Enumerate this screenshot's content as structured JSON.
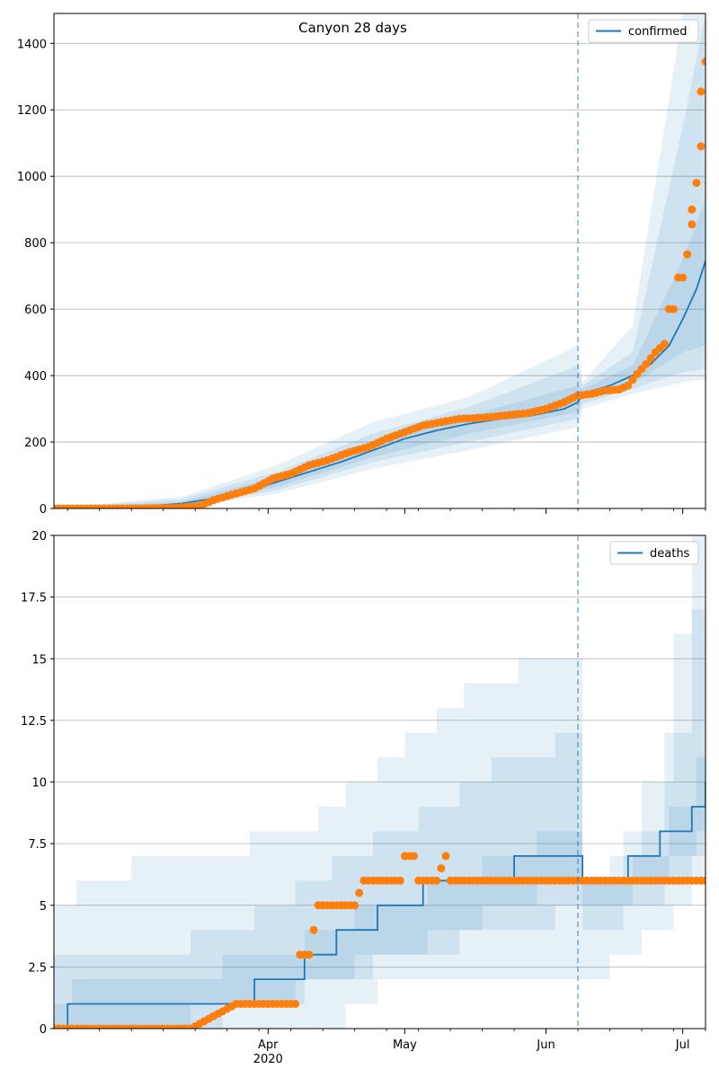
{
  "chart_data": [
    {
      "type": "line",
      "title": "Canyon 28 days",
      "xlabel": "",
      "ylabel": "",
      "x_range": [
        "2020-02-14",
        "2020-07-06"
      ],
      "ylim": [
        0,
        1490
      ],
      "yticks": [
        0,
        200,
        400,
        600,
        800,
        1000,
        1200,
        1400
      ],
      "grid": "horizontal",
      "legend": {
        "position": "top-right",
        "entries": [
          "confirmed"
        ]
      },
      "vertical_marker_date": "2020-06-08",
      "series": [
        {
          "name": "confirmed",
          "kind": "model median",
          "points": [
            [
              "2020-02-14",
              0
            ],
            [
              "2020-02-24",
              1
            ],
            [
              "2020-03-04",
              5
            ],
            [
              "2020-03-13",
              15
            ],
            [
              "2020-03-20",
              30
            ],
            [
              "2020-03-27",
              50
            ],
            [
              "2020-04-03",
              80
            ],
            [
              "2020-04-10",
              110
            ],
            [
              "2020-04-17",
              140
            ],
            [
              "2020-04-24",
              175
            ],
            [
              "2020-05-01",
              210
            ],
            [
              "2020-05-08",
              235
            ],
            [
              "2020-05-15",
              255
            ],
            [
              "2020-05-22",
              270
            ],
            [
              "2020-05-29",
              280
            ],
            [
              "2020-06-05",
              300
            ],
            [
              "2020-06-08",
              320
            ],
            [
              "2020-06-09",
              345
            ],
            [
              "2020-06-15",
              370
            ],
            [
              "2020-06-20",
              400
            ],
            [
              "2020-06-24",
              435
            ],
            [
              "2020-06-28",
              490
            ],
            [
              "2020-07-01",
              570
            ],
            [
              "2020-07-04",
              660
            ],
            [
              "2020-07-06",
              745
            ]
          ]
        },
        {
          "name": "",
          "kind": "observed",
          "points": [
            [
              "2020-02-14",
              0
            ],
            [
              "2020-02-24",
              0
            ],
            [
              "2020-03-04",
              0
            ],
            [
              "2020-03-12",
              2
            ],
            [
              "2020-03-17",
              8
            ],
            [
              "2020-03-20",
              25
            ],
            [
              "2020-03-25",
              45
            ],
            [
              "2020-03-29",
              60
            ],
            [
              "2020-04-02",
              90
            ],
            [
              "2020-04-06",
              105
            ],
            [
              "2020-04-10",
              130
            ],
            [
              "2020-04-14",
              145
            ],
            [
              "2020-04-19",
              170
            ],
            [
              "2020-04-23",
              185
            ],
            [
              "2020-04-27",
              210
            ],
            [
              "2020-05-01",
              230
            ],
            [
              "2020-05-05",
              250
            ],
            [
              "2020-05-09",
              260
            ],
            [
              "2020-05-13",
              270
            ],
            [
              "2020-05-18",
              273
            ],
            [
              "2020-05-23",
              280
            ],
            [
              "2020-05-28",
              287
            ],
            [
              "2020-06-01",
              300
            ],
            [
              "2020-06-05",
              320
            ],
            [
              "2020-06-08",
              340
            ],
            [
              "2020-06-11",
              345
            ],
            [
              "2020-06-14",
              355
            ],
            [
              "2020-06-17",
              358
            ],
            [
              "2020-06-19",
              370
            ],
            [
              "2020-06-21",
              405
            ],
            [
              "2020-06-23",
              435
            ],
            [
              "2020-06-25",
              470
            ],
            [
              "2020-06-27",
              495
            ],
            [
              "2020-06-28",
              600
            ],
            [
              "2020-06-29",
              600
            ],
            [
              "2020-06-30",
              695
            ],
            [
              "2020-07-01",
              695
            ],
            [
              "2020-07-02",
              765
            ],
            [
              "2020-07-03",
              855
            ],
            [
              "2020-07-03",
              900
            ],
            [
              "2020-07-04",
              980
            ],
            [
              "2020-07-05",
              1090
            ],
            [
              "2020-07-05",
              1255
            ],
            [
              "2020-07-06",
              1345
            ]
          ]
        }
      ],
      "bands": [
        {
          "kind": "outer interval",
          "points": [
            [
              "2020-02-14",
              0,
              2
            ],
            [
              "2020-03-13",
              5,
              35
            ],
            [
              "2020-04-03",
              45,
              130
            ],
            [
              "2020-04-24",
              120,
              260
            ],
            [
              "2020-05-15",
              175,
              335
            ],
            [
              "2020-06-08",
              245,
              490
            ],
            [
              "2020-06-09",
              300,
              380
            ],
            [
              "2020-06-20",
              345,
              550
            ],
            [
              "2020-07-01",
              380,
              1490
            ],
            [
              "2020-07-06",
              390,
              1490
            ]
          ]
        },
        {
          "kind": "middle interval",
          "points": [
            [
              "2020-02-14",
              0,
              1
            ],
            [
              "2020-03-13",
              8,
              28
            ],
            [
              "2020-04-03",
              55,
              110
            ],
            [
              "2020-04-24",
              140,
              225
            ],
            [
              "2020-05-15",
              200,
              305
            ],
            [
              "2020-06-08",
              270,
              430
            ],
            [
              "2020-06-09",
              315,
              370
            ],
            [
              "2020-06-20",
              360,
              470
            ],
            [
              "2020-07-01",
              410,
              1150
            ],
            [
              "2020-07-06",
              420,
              1490
            ]
          ]
        },
        {
          "kind": "inner interval",
          "points": [
            [
              "2020-02-14",
              0,
              1
            ],
            [
              "2020-03-13",
              11,
              20
            ],
            [
              "2020-04-03",
              65,
              95
            ],
            [
              "2020-04-24",
              155,
              195
            ],
            [
              "2020-05-15",
              225,
              280
            ],
            [
              "2020-06-08",
              290,
              370
            ],
            [
              "2020-06-09",
              330,
              360
            ],
            [
              "2020-06-20",
              375,
              430
            ],
            [
              "2020-07-01",
              470,
              750
            ],
            [
              "2020-07-06",
              490,
              930
            ]
          ]
        }
      ]
    },
    {
      "type": "line",
      "title": "",
      "xlabel": "",
      "ylabel": "",
      "x_range": [
        "2020-02-14",
        "2020-07-06"
      ],
      "ylim": [
        0,
        20
      ],
      "yticks": [
        0.0,
        2.5,
        5.0,
        7.5,
        10.0,
        12.5,
        15.0,
        17.5,
        20.0
      ],
      "xticks": [
        {
          "date": "2020-04-01",
          "label": "Apr",
          "sublabel": "2020"
        },
        {
          "date": "2020-05-01",
          "label": "May",
          "sublabel": ""
        },
        {
          "date": "2020-06-01",
          "label": "Jun",
          "sublabel": ""
        },
        {
          "date": "2020-07-01",
          "label": "Jul",
          "sublabel": ""
        }
      ],
      "grid": "horizontal",
      "legend": {
        "position": "top-right",
        "entries": [
          "deaths"
        ]
      },
      "vertical_marker_date": "2020-06-08",
      "series": [
        {
          "name": "deaths",
          "kind": "model median",
          "step_points": [
            [
              "2020-02-14",
              0
            ],
            [
              "2020-02-17",
              1
            ],
            [
              "2020-03-29",
              2
            ],
            [
              "2020-04-09",
              3
            ],
            [
              "2020-04-16",
              4
            ],
            [
              "2020-04-25",
              5
            ],
            [
              "2020-05-05",
              6
            ],
            [
              "2020-05-25",
              7
            ],
            [
              "2020-06-08",
              7
            ],
            [
              "2020-06-09",
              6
            ],
            [
              "2020-06-19",
              7
            ],
            [
              "2020-06-26",
              8
            ],
            [
              "2020-07-03",
              9
            ],
            [
              "2020-07-06",
              10
            ]
          ]
        },
        {
          "name": "",
          "kind": "observed",
          "points": [
            [
              "2020-02-14",
              0
            ],
            [
              "2020-03-01",
              0
            ],
            [
              "2020-03-15",
              0
            ],
            [
              "2020-03-25",
              1
            ],
            [
              "2020-04-01",
              1
            ],
            [
              "2020-04-05",
              1
            ],
            [
              "2020-04-07",
              1
            ],
            [
              "2020-04-08",
              3
            ],
            [
              "2020-04-10",
              3
            ],
            [
              "2020-04-11",
              4
            ],
            [
              "2020-04-12",
              5
            ],
            [
              "2020-04-15",
              5
            ],
            [
              "2020-04-20",
              5
            ],
            [
              "2020-04-22",
              6
            ],
            [
              "2020-04-26",
              6
            ],
            [
              "2020-04-30",
              6
            ],
            [
              "2020-05-01",
              7
            ],
            [
              "2020-05-03",
              7
            ],
            [
              "2020-05-04",
              6
            ],
            [
              "2020-05-08",
              6
            ],
            [
              "2020-05-10",
              7
            ],
            [
              "2020-05-11",
              6
            ],
            [
              "2020-05-20",
              6
            ],
            [
              "2020-06-01",
              6
            ],
            [
              "2020-06-08",
              6
            ],
            [
              "2020-06-20",
              6
            ],
            [
              "2020-07-06",
              6
            ]
          ]
        }
      ],
      "bands": [
        {
          "kind": "outer interval",
          "step_points": [
            [
              "2020-02-14",
              0,
              5
            ],
            [
              "2020-02-19",
              0,
              6
            ],
            [
              "2020-03-02",
              0,
              7
            ],
            [
              "2020-03-28",
              0,
              8
            ],
            [
              "2020-04-12",
              0,
              9
            ],
            [
              "2020-04-18",
              1,
              10
            ],
            [
              "2020-04-25",
              2,
              11
            ],
            [
              "2020-05-01",
              2,
              12
            ],
            [
              "2020-05-08",
              2,
              13
            ],
            [
              "2020-05-14",
              2,
              14
            ],
            [
              "2020-05-26",
              2,
              15
            ],
            [
              "2020-06-08",
              2,
              15
            ],
            [
              "2020-06-09",
              2,
              6
            ],
            [
              "2020-06-15",
              3,
              7
            ],
            [
              "2020-06-22",
              4,
              10
            ],
            [
              "2020-06-29",
              5,
              16
            ],
            [
              "2020-07-03",
              6,
              20
            ],
            [
              "2020-07-06",
              7,
              20
            ]
          ]
        },
        {
          "kind": "middle interval",
          "step_points": [
            [
              "2020-02-14",
              0,
              3
            ],
            [
              "2020-02-22",
              0,
              3
            ],
            [
              "2020-03-15",
              1,
              4
            ],
            [
              "2020-03-29",
              1,
              5
            ],
            [
              "2020-04-07",
              2,
              6
            ],
            [
              "2020-04-15",
              2,
              7
            ],
            [
              "2020-04-24",
              3,
              8
            ],
            [
              "2020-05-04",
              3,
              9
            ],
            [
              "2020-05-13",
              4,
              10
            ],
            [
              "2020-05-20",
              4,
              11
            ],
            [
              "2020-06-03",
              5,
              12
            ],
            [
              "2020-06-08",
              5,
              12
            ],
            [
              "2020-06-09",
              4,
              6
            ],
            [
              "2020-06-18",
              5,
              8
            ],
            [
              "2020-06-27",
              6,
              12
            ],
            [
              "2020-07-03",
              7,
              17
            ],
            [
              "2020-07-06",
              8,
              17
            ]
          ]
        },
        {
          "kind": "inner interval",
          "step_points": [
            [
              "2020-02-14",
              0,
              1
            ],
            [
              "2020-02-18",
              0,
              2
            ],
            [
              "2020-03-22",
              1,
              3
            ],
            [
              "2020-04-09",
              2,
              4
            ],
            [
              "2020-04-20",
              3,
              5
            ],
            [
              "2020-05-06",
              4,
              6
            ],
            [
              "2020-05-18",
              5,
              7
            ],
            [
              "2020-05-30",
              6,
              8
            ],
            [
              "2020-06-08",
              6,
              8
            ],
            [
              "2020-06-09",
              5,
              6
            ],
            [
              "2020-06-20",
              6,
              7
            ],
            [
              "2020-06-28",
              7,
              9
            ],
            [
              "2020-07-04",
              8,
              11
            ],
            [
              "2020-07-06",
              9,
              13
            ]
          ]
        }
      ]
    }
  ]
}
